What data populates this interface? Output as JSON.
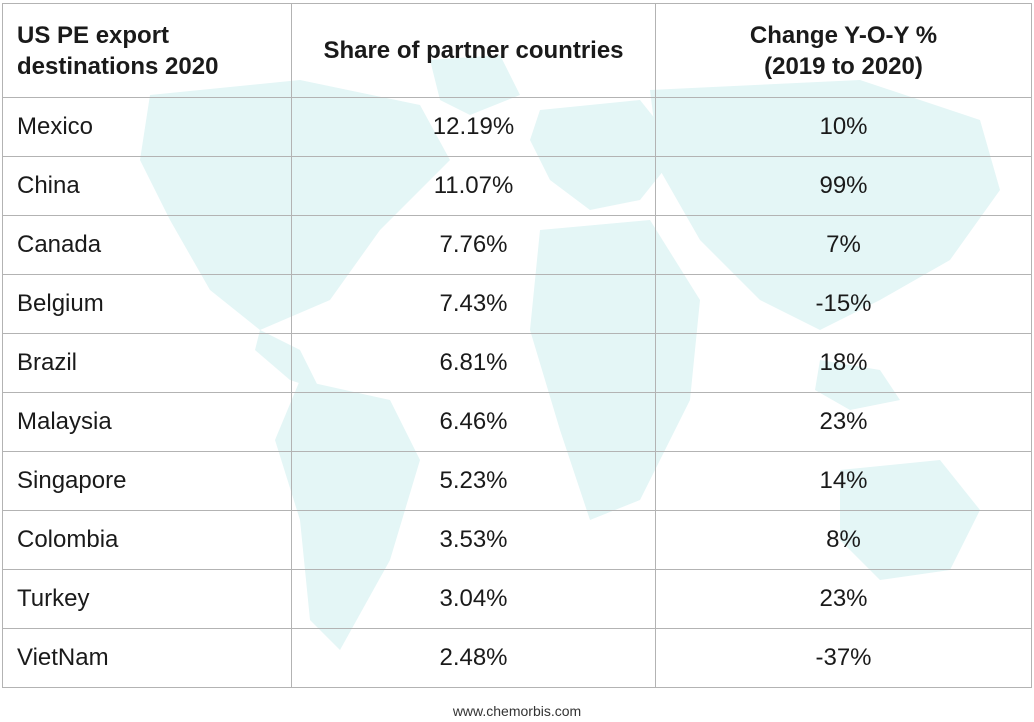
{
  "chart_data": {
    "type": "table",
    "columns": [
      "US PE export destinations 2020",
      "Share of partner countries",
      "Change Y-O-Y % (2019 to 2020)"
    ],
    "header_lines": [
      [
        "US PE export",
        "destinations 2020"
      ],
      [
        "Share of partner countries"
      ],
      [
        "Change Y-O-Y %",
        "(2019 to 2020)"
      ]
    ],
    "rows": [
      {
        "country": "Mexico",
        "share": "12.19%",
        "change": "10%"
      },
      {
        "country": "China",
        "share": "11.07%",
        "change": "99%"
      },
      {
        "country": "Canada",
        "share": "7.76%",
        "change": "7%"
      },
      {
        "country": "Belgium",
        "share": "7.43%",
        "change": "-15%"
      },
      {
        "country": "Brazil",
        "share": "6.81%",
        "change": "18%"
      },
      {
        "country": "Malaysia",
        "share": "6.46%",
        "change": "23%"
      },
      {
        "country": "Singapore",
        "share": "5.23%",
        "change": "14%"
      },
      {
        "country": "Colombia",
        "share": "3.53%",
        "change": "8%"
      },
      {
        "country": "Turkey",
        "share": "3.04%",
        "change": "23%"
      },
      {
        "country": "VietNam",
        "share": "2.48%",
        "change": "-37%"
      }
    ]
  },
  "footer": {
    "source": "www.chemorbis.com"
  },
  "colors": {
    "map_background": "#e4f6f6",
    "grid_line": "#b3b3b3",
    "text": "#1a1a1a"
  },
  "icons": {
    "background": "world-map-icon"
  }
}
